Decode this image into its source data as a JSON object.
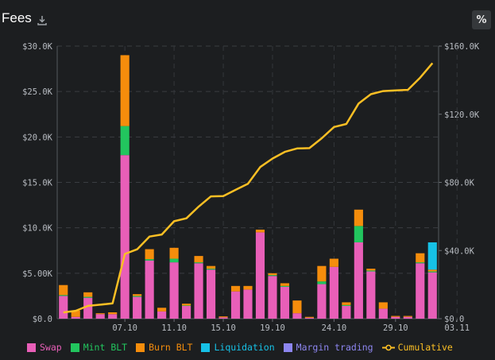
{
  "header": {
    "title": "Fees",
    "percent_label": "%"
  },
  "colors": {
    "swap": "#e85fb8",
    "mint": "#22c55e",
    "burn": "#f58d0c",
    "liq": "#16c1e6",
    "margin": "#8d86f0",
    "cum": "#fbbf24"
  },
  "chart_data": {
    "type": "bar",
    "title": "Fees",
    "left_axis": {
      "min": 0,
      "max": 30000,
      "ticks": [
        "$0.0",
        "$5.00K",
        "$10.0K",
        "$15.0K",
        "$20.0K",
        "$25.0K",
        "$30.0K"
      ]
    },
    "right_axis": {
      "min": 0,
      "max": 160000,
      "ticks": [
        "$0.0",
        "$40.0K",
        "$80.0K",
        "$120.0K",
        "$160.0K"
      ]
    },
    "x_labels": [
      {
        "label": "07.10",
        "index": 5
      },
      {
        "label": "11.10",
        "index": 9
      },
      {
        "label": "15.10",
        "index": 13
      },
      {
        "label": "19.10",
        "index": 17
      },
      {
        "label": "24.10",
        "index": 22
      },
      {
        "label": "29.10",
        "index": 27
      },
      {
        "label": "03.11",
        "index": 32
      }
    ],
    "series": [
      {
        "name": "Swap",
        "key": "swap",
        "values": [
          2500,
          200,
          2300,
          500,
          500,
          18000,
          2400,
          6400,
          800,
          6200,
          1400,
          6100,
          5400,
          150,
          3000,
          3200,
          9500,
          4700,
          3500,
          600,
          100,
          3800,
          5700,
          1400,
          8400,
          5200,
          1100,
          200,
          200,
          6100,
          5100
        ]
      },
      {
        "name": "Mint BLT",
        "key": "mint",
        "values": [
          100,
          0,
          100,
          0,
          0,
          3200,
          100,
          150,
          0,
          400,
          50,
          100,
          100,
          0,
          0,
          0,
          0,
          100,
          100,
          0,
          0,
          300,
          0,
          100,
          1800,
          100,
          0,
          0,
          0,
          100,
          100
        ]
      },
      {
        "name": "Burn BLT",
        "key": "burn",
        "values": [
          1100,
          700,
          500,
          100,
          200,
          7800,
          200,
          1100,
          400,
          1200,
          200,
          700,
          300,
          100,
          600,
          400,
          300,
          200,
          300,
          1400,
          100,
          1700,
          900,
          300,
          1800,
          200,
          700,
          100,
          100,
          1000,
          200
        ]
      },
      {
        "name": "Liquidation",
        "key": "liq",
        "values": [
          0,
          0,
          0,
          0,
          0,
          0,
          0,
          0,
          0,
          0,
          0,
          0,
          0,
          0,
          0,
          0,
          0,
          0,
          0,
          0,
          0,
          0,
          0,
          0,
          0,
          0,
          0,
          0,
          0,
          0,
          3000
        ]
      },
      {
        "name": "Margin trading",
        "key": "margin",
        "values": [
          0,
          0,
          0,
          0,
          0,
          0,
          0,
          0,
          0,
          0,
          0,
          0,
          0,
          0,
          0,
          0,
          0,
          0,
          0,
          0,
          0,
          0,
          0,
          0,
          0,
          0,
          0,
          0,
          0,
          0,
          0
        ]
      }
    ],
    "cumulative": {
      "name": "Cumulative",
      "key": "cum",
      "values": [
        3700,
        4600,
        7500,
        8200,
        9000,
        38000,
        40700,
        48200,
        49400,
        57200,
        58900,
        65800,
        71800,
        72000,
        75600,
        79200,
        89000,
        94000,
        97900,
        99900,
        100100,
        105900,
        112500,
        114300,
        126300,
        131800,
        133600,
        134000,
        134300,
        141500,
        150000
      ]
    }
  },
  "legend": [
    {
      "key": "swap",
      "label": "Swap"
    },
    {
      "key": "mint",
      "label": "Mint BLT"
    },
    {
      "key": "burn",
      "label": "Burn BLT"
    },
    {
      "key": "liq",
      "label": "Liquidation"
    },
    {
      "key": "margin",
      "label": "Margin trading"
    },
    {
      "key": "cum",
      "label": "Cumulative"
    }
  ]
}
